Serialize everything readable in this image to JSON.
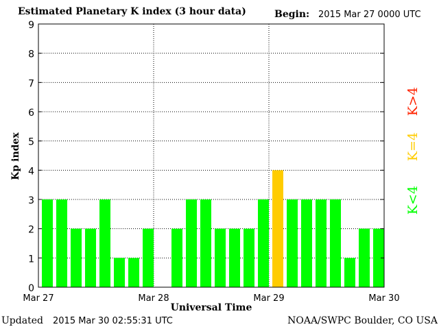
{
  "header": {
    "title": "Estimated Planetary K index (3 hour data)",
    "begin_label": "Begin:",
    "begin_value": "2015 Mar 27 0000 UTC"
  },
  "footer": {
    "updated_label": "Updated",
    "updated_value": "2015 Mar 30 02:55:31 UTC",
    "credit": "NOAA/SWPC Boulder, CO USA"
  },
  "legend": {
    "high": "K>4",
    "equal": "K=4",
    "low": "K<4"
  },
  "colors": {
    "low": "#00ff00",
    "equal": "#ffcc00",
    "high": "#ff2200"
  },
  "chart_data": {
    "type": "bar",
    "title": "Estimated Planetary K index (3 hour data)",
    "xlabel": "Universal Time",
    "ylabel": "Kp index",
    "ylim": [
      0,
      9
    ],
    "yticks": [
      0,
      1,
      2,
      3,
      4,
      5,
      6,
      7,
      8,
      9
    ],
    "xticks": [
      "Mar 27",
      "Mar 28",
      "Mar 29",
      "Mar 30"
    ],
    "interval_hours": 3,
    "values": [
      3,
      3,
      2,
      2,
      3,
      1,
      1,
      2,
      0,
      2,
      3,
      3,
      2,
      2,
      2,
      3,
      4,
      3,
      3,
      3,
      3,
      1,
      2,
      2
    ],
    "grid": true
  }
}
